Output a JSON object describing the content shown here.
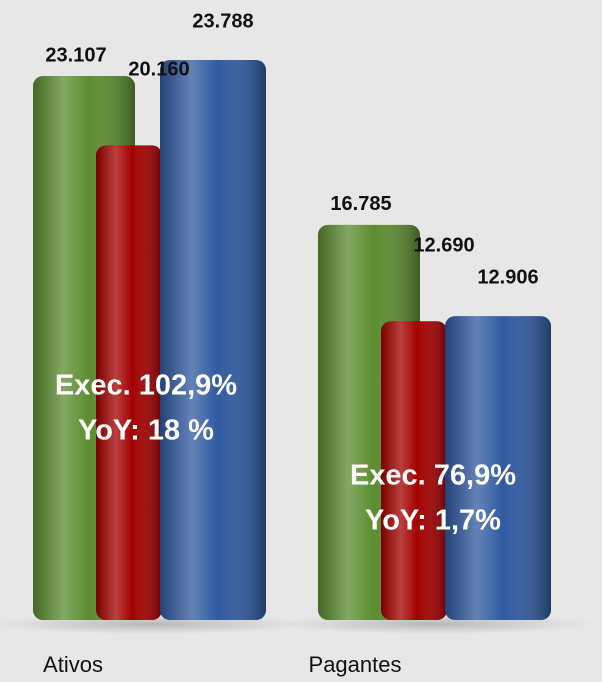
{
  "chart_data": {
    "type": "bar",
    "categories": [
      "Ativos",
      "Pagantes"
    ],
    "series": [
      {
        "color": "#5b8c2f",
        "values": [
          23107,
          16785
        ],
        "value_labels": [
          "23.107",
          "16.785"
        ]
      },
      {
        "color": "#a30000",
        "values": [
          20160,
          12690
        ],
        "value_labels": [
          "20.160",
          "12.690"
        ]
      },
      {
        "color": "#2f5aa0",
        "values": [
          23788,
          12906
        ],
        "value_labels": [
          "23.788",
          "12.906"
        ]
      }
    ],
    "annotations": [
      [
        "Exec. 102,9%",
        "YoY: 18 %"
      ],
      [
        "Exec. 76,9%",
        "YoY: 1,7%"
      ]
    ]
  }
}
